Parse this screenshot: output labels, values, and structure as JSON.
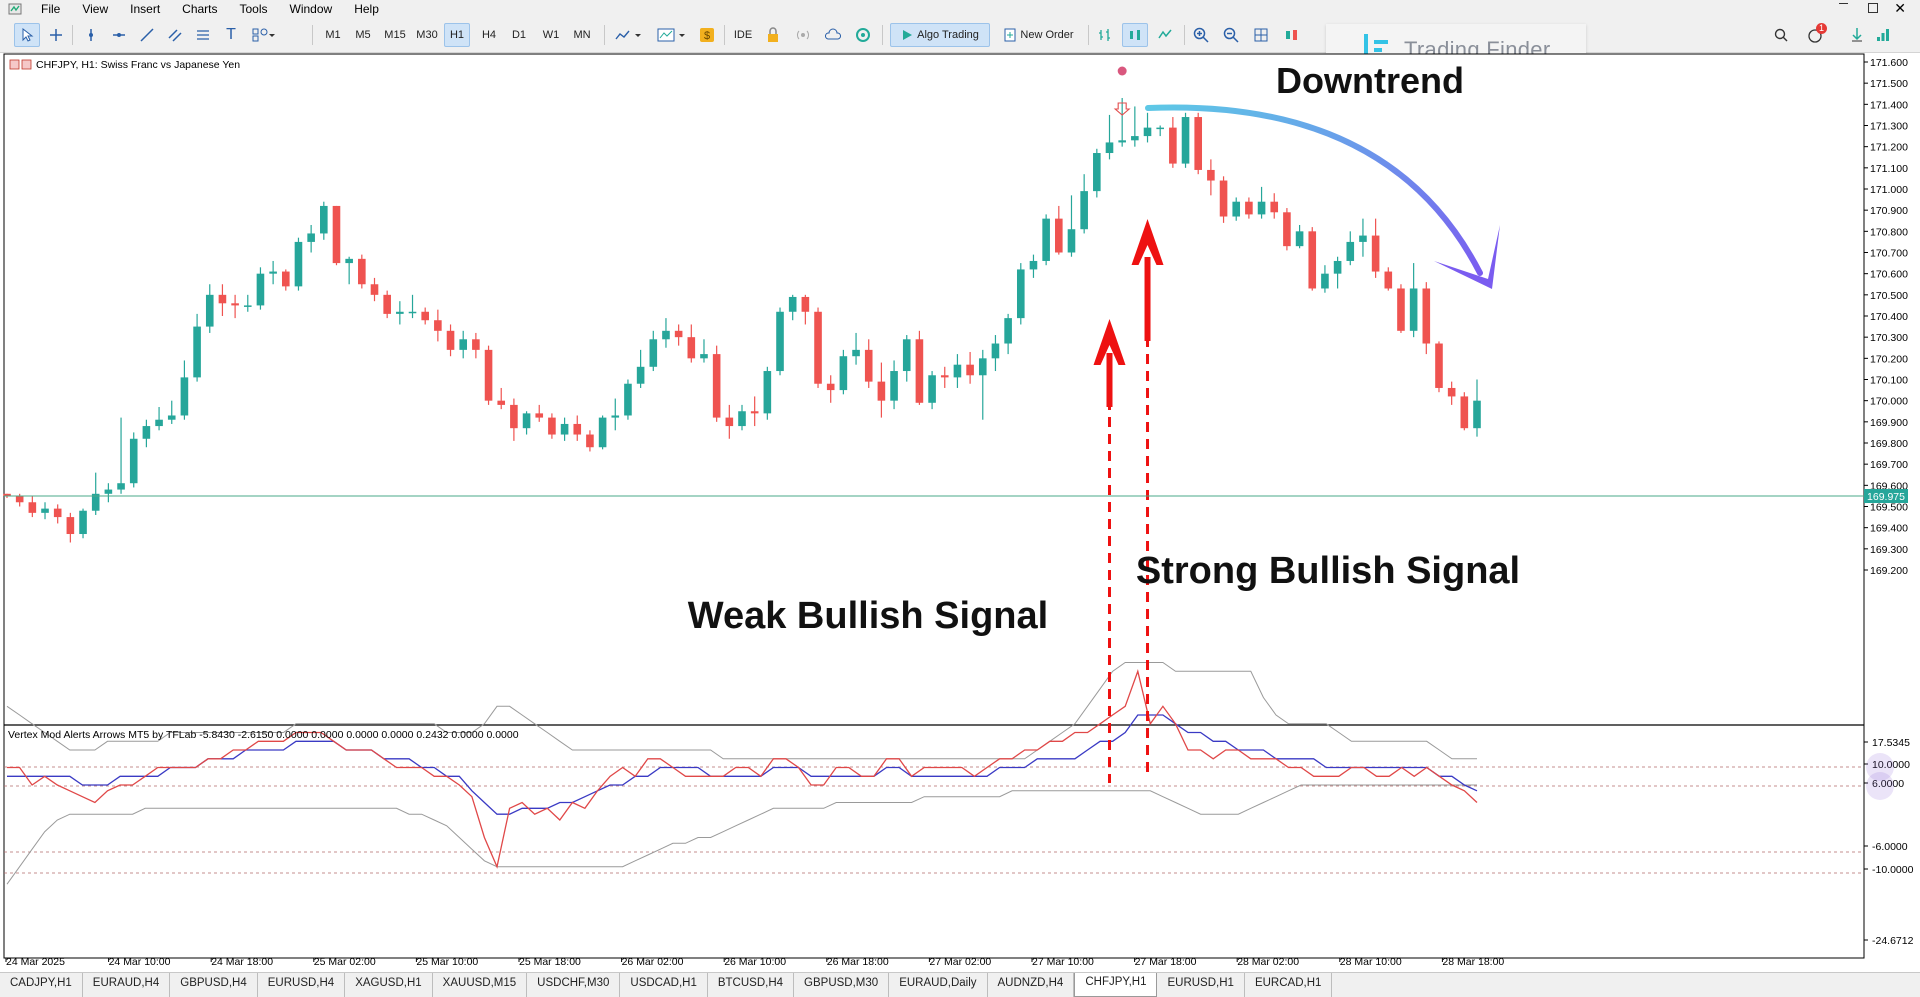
{
  "menu": [
    "File",
    "View",
    "Insert",
    "Charts",
    "Tools",
    "Window",
    "Help"
  ],
  "toolbar": {
    "timeframes": [
      "M1",
      "M5",
      "M15",
      "M30",
      "H1",
      "H4",
      "D1",
      "W1",
      "MN"
    ],
    "active_timeframe": "H1",
    "ide_label": "IDE",
    "algo_trading_label": "Algo Trading",
    "new_order_label": "New Order",
    "brand": "Trading Finder",
    "notification_count": "1"
  },
  "chart": {
    "header": "CHFJPY, H1:  Swiss Franc vs Japanese Yen",
    "price_labels": [
      "171.600",
      "171.500",
      "171.400",
      "171.300",
      "171.200",
      "171.100",
      "171.000",
      "170.900",
      "170.800",
      "170.700",
      "170.600",
      "170.500",
      "170.400",
      "170.300",
      "170.200",
      "170.100",
      "170.000",
      "169.900",
      "169.800",
      "169.700",
      "169.600",
      "169.500",
      "169.400",
      "169.300",
      "169.200"
    ],
    "current_price": "169.975",
    "annotations": {
      "downtrend": "Downtrend",
      "strong_signal": "Strong Bullish Signal",
      "weak_signal": "Weak Bullish Signal"
    },
    "colors": {
      "bull": "#26a69a",
      "bear": "#ef5350",
      "signal_arrow": "#ee1111",
      "trend_arrow_start": "#5ec8e6",
      "trend_arrow_end": "#7a5cf0"
    }
  },
  "indicator": {
    "header": "Vertex Mod Alerts Arrows MT5 by TFLab -5.8430 -2.6150 0.0000 0.0000 0.0000 0.0000 0.2432 0.0000 0.0000",
    "axis_labels": [
      "17.5345",
      "10.0000",
      "6.0000",
      "-6.0000",
      "-10.0000",
      "-24.6712"
    ]
  },
  "time_axis": [
    "24 Mar 2025",
    "24 Mar 10:00",
    "24 Mar 18:00",
    "25 Mar 02:00",
    "25 Mar 10:00",
    "25 Mar 18:00",
    "26 Mar 02:00",
    "26 Mar 10:00",
    "26 Mar 18:00",
    "27 Mar 02:00",
    "27 Mar 10:00",
    "27 Mar 18:00",
    "28 Mar 02:00",
    "28 Mar 10:00",
    "28 Mar 18:00"
  ],
  "tabs": [
    "CADJPY,H1",
    "EURAUD,H4",
    "GBPUSD,H4",
    "EURUSD,H4",
    "XAGUSD,H1",
    "XAUUSD,M15",
    "USDCHF,M30",
    "USDCAD,H1",
    "BTCUSD,H4",
    "GBPUSD,M30",
    "EURAUD,Daily",
    "AUDNZD,H4",
    "CHFJPY,H1",
    "EURUSD,H1",
    "EURCAD,H1"
  ],
  "active_tab": "CHFJPY,H1",
  "candles": [
    [
      169.56,
      169.56,
      169.54,
      169.55
    ],
    [
      169.55,
      169.56,
      169.5,
      169.52
    ],
    [
      169.52,
      169.55,
      169.45,
      169.47
    ],
    [
      169.47,
      169.52,
      169.44,
      169.49
    ],
    [
      169.49,
      169.51,
      169.42,
      169.45
    ],
    [
      169.45,
      169.47,
      169.33,
      169.37
    ],
    [
      169.37,
      169.49,
      169.35,
      169.48
    ],
    [
      169.48,
      169.66,
      169.46,
      169.56
    ],
    [
      169.56,
      169.61,
      169.52,
      169.58
    ],
    [
      169.58,
      169.92,
      169.56,
      169.61
    ],
    [
      169.61,
      169.85,
      169.59,
      169.82
    ],
    [
      169.82,
      169.91,
      169.78,
      169.88
    ],
    [
      169.88,
      169.97,
      169.86,
      169.91
    ],
    [
      169.91,
      170.0,
      169.89,
      169.93
    ],
    [
      169.93,
      170.19,
      169.91,
      170.11
    ],
    [
      170.11,
      170.41,
      170.09,
      170.35
    ],
    [
      170.35,
      170.55,
      170.32,
      170.5
    ],
    [
      170.5,
      170.55,
      170.4,
      170.46
    ],
    [
      170.46,
      170.5,
      170.39,
      170.45
    ],
    [
      170.45,
      170.5,
      170.42,
      170.45
    ],
    [
      170.45,
      170.63,
      170.43,
      170.6
    ],
    [
      170.6,
      170.66,
      170.55,
      170.61
    ],
    [
      170.61,
      170.62,
      170.52,
      170.54
    ],
    [
      170.54,
      170.77,
      170.52,
      170.75
    ],
    [
      170.75,
      170.83,
      170.7,
      170.79
    ],
    [
      170.79,
      170.94,
      170.76,
      170.92
    ],
    [
      170.92,
      170.92,
      170.64,
      170.65
    ],
    [
      170.65,
      170.68,
      170.55,
      170.67
    ],
    [
      170.67,
      170.69,
      170.53,
      170.55
    ],
    [
      170.55,
      170.58,
      170.47,
      170.5
    ],
    [
      170.5,
      170.52,
      170.39,
      170.41
    ],
    [
      170.41,
      170.47,
      170.36,
      170.42
    ],
    [
      170.42,
      170.5,
      170.39,
      170.42
    ],
    [
      170.42,
      170.44,
      170.36,
      170.38
    ],
    [
      170.38,
      170.43,
      170.28,
      170.33
    ],
    [
      170.33,
      170.36,
      170.21,
      170.24
    ],
    [
      170.24,
      170.33,
      170.2,
      170.29
    ],
    [
      170.29,
      170.32,
      170.2,
      170.24
    ],
    [
      170.24,
      170.26,
      169.98,
      170.0
    ],
    [
      170.0,
      170.06,
      169.96,
      169.98
    ],
    [
      169.98,
      170.01,
      169.81,
      169.87
    ],
    [
      169.87,
      169.95,
      169.84,
      169.94
    ],
    [
      169.94,
      169.98,
      169.9,
      169.92
    ],
    [
      169.92,
      169.94,
      169.82,
      169.84
    ],
    [
      169.84,
      169.92,
      169.81,
      169.89
    ],
    [
      169.89,
      169.93,
      169.81,
      169.84
    ],
    [
      169.84,
      169.86,
      169.76,
      169.78
    ],
    [
      169.78,
      169.93,
      169.77,
      169.92
    ],
    [
      169.92,
      170.01,
      169.86,
      169.93
    ],
    [
      169.93,
      170.1,
      169.91,
      170.08
    ],
    [
      170.08,
      170.24,
      170.06,
      170.16
    ],
    [
      170.16,
      170.33,
      170.14,
      170.29
    ],
    [
      170.29,
      170.39,
      170.25,
      170.33
    ],
    [
      170.33,
      170.36,
      170.26,
      170.3
    ],
    [
      170.3,
      170.36,
      170.18,
      170.2
    ],
    [
      170.2,
      170.29,
      170.18,
      170.22
    ],
    [
      170.22,
      170.26,
      169.9,
      169.92
    ],
    [
      169.92,
      169.98,
      169.82,
      169.88
    ],
    [
      169.88,
      169.98,
      169.86,
      169.95
    ],
    [
      169.95,
      170.02,
      169.88,
      169.94
    ],
    [
      169.94,
      170.16,
      169.91,
      170.14
    ],
    [
      170.14,
      170.44,
      170.12,
      170.42
    ],
    [
      170.42,
      170.5,
      170.38,
      170.49
    ],
    [
      170.49,
      170.5,
      170.36,
      170.42
    ],
    [
      170.42,
      170.44,
      170.06,
      170.08
    ],
    [
      170.08,
      170.12,
      169.99,
      170.05
    ],
    [
      170.05,
      170.24,
      170.03,
      170.21
    ],
    [
      170.21,
      170.32,
      170.17,
      170.24
    ],
    [
      170.24,
      170.29,
      170.06,
      170.09
    ],
    [
      170.09,
      170.18,
      169.92,
      170.0
    ],
    [
      170.0,
      170.19,
      169.96,
      170.14
    ],
    [
      170.14,
      170.31,
      170.09,
      170.29
    ],
    [
      170.29,
      170.33,
      169.98,
      169.99
    ],
    [
      169.99,
      170.14,
      169.96,
      170.12
    ],
    [
      170.12,
      170.16,
      170.06,
      170.11
    ],
    [
      170.11,
      170.22,
      170.06,
      170.17
    ],
    [
      170.17,
      170.23,
      170.08,
      170.12
    ],
    [
      170.12,
      170.24,
      169.91,
      170.2
    ],
    [
      170.2,
      170.31,
      170.14,
      170.27
    ],
    [
      170.27,
      170.41,
      170.22,
      170.39
    ],
    [
      170.39,
      170.65,
      170.36,
      170.62
    ],
    [
      170.62,
      170.69,
      170.58,
      170.66
    ],
    [
      170.66,
      170.88,
      170.64,
      170.86
    ],
    [
      170.86,
      170.92,
      170.69,
      170.7
    ],
    [
      170.7,
      170.97,
      170.68,
      170.81
    ],
    [
      170.81,
      171.07,
      170.79,
      170.99
    ],
    [
      170.99,
      171.19,
      170.96,
      171.17
    ],
    [
      171.17,
      171.35,
      171.14,
      171.22
    ],
    [
      171.22,
      171.43,
      171.2,
      171.23
    ],
    [
      171.23,
      171.39,
      171.2,
      171.25
    ],
    [
      171.25,
      171.36,
      171.22,
      171.29
    ],
    [
      171.29,
      171.3,
      171.25,
      171.29
    ],
    [
      171.29,
      171.34,
      171.1,
      171.12
    ],
    [
      171.12,
      171.36,
      171.1,
      171.34
    ],
    [
      171.34,
      171.36,
      171.07,
      171.09
    ],
    [
      171.09,
      171.14,
      170.97,
      171.04
    ],
    [
      171.04,
      171.06,
      170.84,
      170.87
    ],
    [
      170.87,
      170.96,
      170.85,
      170.94
    ],
    [
      170.94,
      170.96,
      170.86,
      170.88
    ],
    [
      170.88,
      171.01,
      170.86,
      170.94
    ],
    [
      170.94,
      170.98,
      170.86,
      170.89
    ],
    [
      170.89,
      170.91,
      170.71,
      170.73
    ],
    [
      170.73,
      170.83,
      170.72,
      170.8
    ],
    [
      170.8,
      170.82,
      170.52,
      170.53
    ],
    [
      170.53,
      170.64,
      170.51,
      170.6
    ],
    [
      170.6,
      170.68,
      170.53,
      170.66
    ],
    [
      170.66,
      170.8,
      170.64,
      170.75
    ],
    [
      170.75,
      170.86,
      170.68,
      170.78
    ],
    [
      170.78,
      170.86,
      170.58,
      170.61
    ],
    [
      170.61,
      170.63,
      170.52,
      170.53
    ],
    [
      170.53,
      170.55,
      170.32,
      170.33
    ],
    [
      170.33,
      170.65,
      170.3,
      170.53
    ],
    [
      170.53,
      170.56,
      170.22,
      170.27
    ],
    [
      170.27,
      170.28,
      170.04,
      170.06
    ],
    [
      170.06,
      170.09,
      169.98,
      170.02
    ],
    [
      170.02,
      170.04,
      169.86,
      169.87
    ],
    [
      169.87,
      170.1,
      169.83,
      170.0
    ]
  ],
  "osc_red": [
    2,
    2,
    0,
    1,
    0,
    -1,
    -2,
    -3,
    -1,
    0,
    0,
    1,
    2,
    2,
    2,
    2,
    3,
    3,
    4,
    4,
    5,
    5,
    5,
    6,
    6,
    6,
    5,
    4,
    4,
    4,
    3,
    2,
    2,
    2,
    1,
    1,
    0,
    -2,
    -9,
    -14,
    -4,
    -3,
    -5,
    -4,
    -6,
    -3,
    -4,
    -1,
    1,
    2,
    1,
    3,
    3,
    2,
    1,
    1,
    1,
    1,
    2,
    2,
    1,
    3,
    3,
    2,
    0,
    0,
    2,
    2,
    1,
    1,
    3,
    3,
    1,
    2,
    2,
    2,
    2,
    1,
    2,
    3,
    3,
    4,
    4,
    5,
    5,
    6,
    6,
    7,
    8,
    9,
    13,
    7,
    9,
    7,
    4,
    4,
    3,
    4,
    4,
    3,
    3,
    3,
    2,
    2,
    1,
    1,
    1,
    2,
    2,
    1,
    1,
    2,
    1,
    2,
    1,
    0,
    -1,
    -3
  ],
  "osc_blue": [
    1,
    1,
    1,
    1,
    1,
    1,
    0,
    0,
    0,
    1,
    1,
    1,
    1,
    2,
    2,
    2,
    3,
    3,
    3,
    4,
    4,
    4,
    4,
    5,
    5,
    5,
    5,
    4,
    4,
    4,
    3,
    3,
    3,
    2,
    2,
    1,
    1,
    -1,
    -3,
    -5,
    -5,
    -4,
    -4,
    -4,
    -3,
    -3,
    -2,
    -1,
    0,
    0,
    1,
    1,
    2,
    2,
    2,
    2,
    1,
    1,
    1,
    1,
    1,
    2,
    2,
    2,
    1,
    1,
    1,
    1,
    1,
    1,
    2,
    2,
    1,
    1,
    1,
    1,
    1,
    1,
    1,
    2,
    2,
    2,
    3,
    3,
    3,
    3,
    4,
    5,
    5,
    6,
    8,
    8,
    8,
    7,
    6,
    6,
    5,
    5,
    4,
    4,
    4,
    3,
    3,
    3,
    3,
    2,
    2,
    2,
    2,
    2,
    2,
    2,
    2,
    2,
    1,
    1,
    0,
    -1
  ],
  "osc_upper": [
    9,
    8,
    7,
    6,
    5,
    4,
    4,
    4,
    5,
    5,
    5,
    5,
    5,
    6,
    6,
    6,
    6,
    6,
    6,
    6,
    6,
    6,
    6,
    7,
    7,
    7,
    7,
    7,
    7,
    7,
    7,
    7,
    7,
    7,
    7,
    6,
    6,
    6,
    7,
    9,
    9,
    8,
    7,
    6,
    5,
    4,
    4,
    4,
    4,
    4,
    4,
    4,
    4,
    4,
    4,
    4,
    4,
    3,
    3,
    3,
    3,
    3,
    3,
    3,
    3,
    3,
    3,
    3,
    3,
    3,
    3,
    3,
    3,
    3,
    3,
    3,
    3,
    3,
    3,
    3,
    3,
    3,
    4,
    5,
    6,
    7,
    9,
    11,
    13,
    14,
    14,
    14,
    14,
    13,
    13,
    13,
    13,
    13,
    13,
    13,
    10,
    8,
    7,
    7,
    7,
    7,
    6,
    5,
    5,
    5,
    5,
    5,
    5,
    5,
    4,
    3,
    3,
    3
  ],
  "osc_lower": [
    -17,
    -14,
    -11,
    -8,
    -6,
    -5,
    -5,
    -5,
    -5,
    -5,
    -5,
    -4,
    -4,
    -4,
    -4,
    -4,
    -4,
    -4,
    -4,
    -4,
    -4,
    -4,
    -4,
    -4,
    -4,
    -4,
    -4,
    -4,
    -4,
    -4,
    -4,
    -4,
    -5,
    -5,
    -6,
    -7,
    -9,
    -11,
    -13,
    -14,
    -14,
    -14,
    -14,
    -14,
    -14,
    -14,
    -14,
    -14,
    -14,
    -14,
    -13,
    -12,
    -11,
    -10,
    -10,
    -9,
    -9,
    -8,
    -7,
    -6,
    -5,
    -4,
    -4,
    -4,
    -4,
    -4,
    -3,
    -3,
    -3,
    -3,
    -3,
    -3,
    -3,
    -2,
    -2,
    -2,
    -2,
    -2,
    -2,
    -2,
    -1,
    -1,
    -1,
    -1,
    -1,
    -1,
    -1,
    -1,
    -1,
    -1,
    -1,
    -1,
    -2,
    -3,
    -4,
    -5,
    -5,
    -5,
    -5,
    -4,
    -3,
    -2,
    -1,
    0,
    0,
    0,
    0,
    0,
    0,
    0,
    0,
    0,
    0,
    0,
    0,
    0,
    0,
    0
  ]
}
